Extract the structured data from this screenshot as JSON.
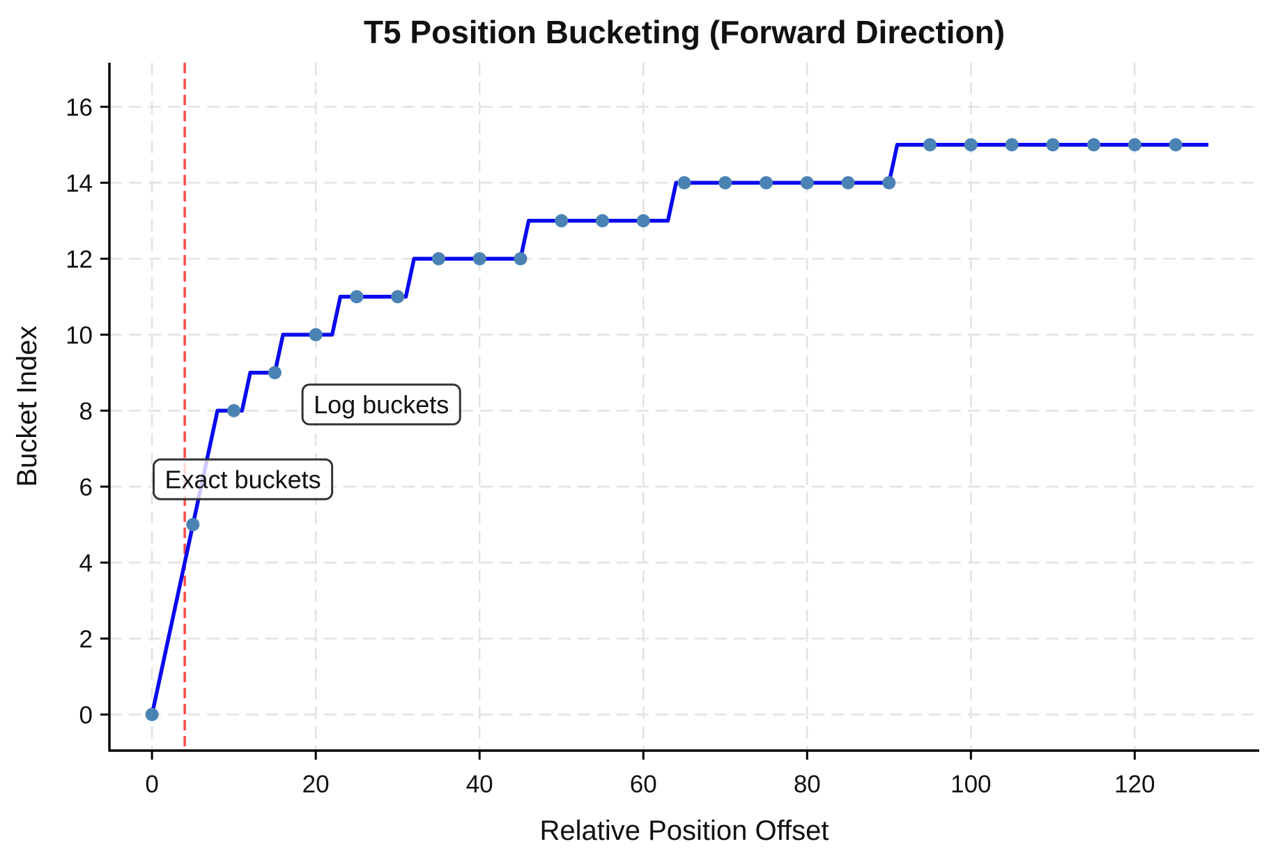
{
  "figure": {
    "title": "T5 Position Bucketing (Forward Direction)"
  },
  "chart_data": {
    "type": "line",
    "title": "T5 Position Bucketing (Forward Direction)",
    "xlabel": "Relative Position Offset",
    "ylabel": "Bucket Index",
    "xlim": [
      -5.2,
      135.2
    ],
    "ylim": [
      -0.95,
      17.16
    ],
    "x_ticks": [
      0,
      20,
      40,
      60,
      80,
      100,
      120
    ],
    "y_ticks": [
      0,
      2,
      4,
      6,
      8,
      10,
      12,
      14,
      16
    ],
    "grid": true,
    "grid_color": "#e2e2e2",
    "series": [
      {
        "name": "bucket-step-line",
        "type": "step-line",
        "color": "#0a0aee",
        "points": [
          [
            0,
            0
          ],
          [
            8,
            8
          ],
          [
            11,
            8
          ],
          [
            12,
            9
          ],
          [
            15,
            9
          ],
          [
            16,
            10
          ],
          [
            22,
            10
          ],
          [
            23,
            11
          ],
          [
            31,
            11
          ],
          [
            32,
            12
          ],
          [
            45,
            12
          ],
          [
            46,
            13
          ],
          [
            63,
            13
          ],
          [
            64,
            14
          ],
          [
            90,
            14
          ],
          [
            91,
            15
          ],
          [
            129,
            15
          ]
        ]
      },
      {
        "name": "bucket-markers",
        "type": "scatter",
        "color": "#4a82b4",
        "points": [
          [
            0,
            0
          ],
          [
            5,
            5
          ],
          [
            10,
            8
          ],
          [
            15,
            9
          ],
          [
            20,
            10
          ],
          [
            25,
            11
          ],
          [
            30,
            11
          ],
          [
            35,
            12
          ],
          [
            40,
            12
          ],
          [
            45,
            12
          ],
          [
            50,
            13
          ],
          [
            55,
            13
          ],
          [
            60,
            13
          ],
          [
            65,
            14
          ],
          [
            70,
            14
          ],
          [
            75,
            14
          ],
          [
            80,
            14
          ],
          [
            85,
            14
          ],
          [
            90,
            14
          ],
          [
            95,
            15
          ],
          [
            100,
            15
          ],
          [
            105,
            15
          ],
          [
            110,
            15
          ],
          [
            115,
            15
          ],
          [
            120,
            15
          ],
          [
            125,
            15
          ]
        ]
      }
    ],
    "vline": {
      "x": 4,
      "color": "#ff4c4c",
      "style": "dashed"
    },
    "annotations": [
      {
        "text": "Exact buckets",
        "x": 11.1,
        "y": 6.2
      },
      {
        "text": "Log buckets",
        "x": 28.0,
        "y": 8.17
      }
    ]
  }
}
